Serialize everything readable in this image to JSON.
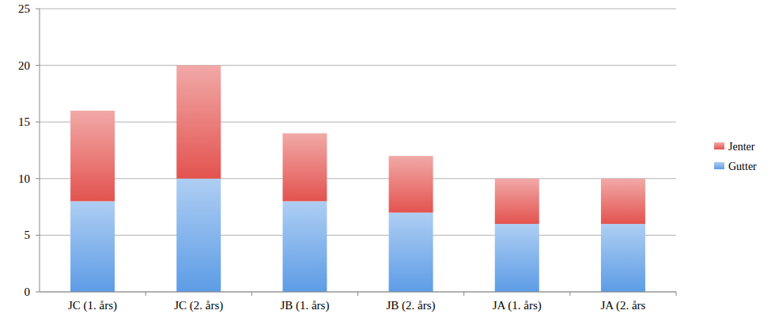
{
  "chart_data": {
    "type": "bar",
    "stacked": true,
    "categories": [
      "JC (1. års)",
      "JC (2. års)",
      "JB (1. års)",
      "JB (2. års)",
      "JA (1. års)",
      "JA (2. års"
    ],
    "series": [
      {
        "name": "Gutter",
        "color": "#5d9ce6",
        "values": [
          8,
          10,
          8,
          7,
          6,
          6
        ]
      },
      {
        "name": "Jenter",
        "color": "#e3534f",
        "values": [
          8,
          10,
          6,
          5,
          4,
          4
        ]
      }
    ],
    "ylim": [
      0,
      25
    ],
    "yticks": [
      0,
      5,
      10,
      15,
      20,
      25
    ],
    "grid": true,
    "legend": "right"
  }
}
